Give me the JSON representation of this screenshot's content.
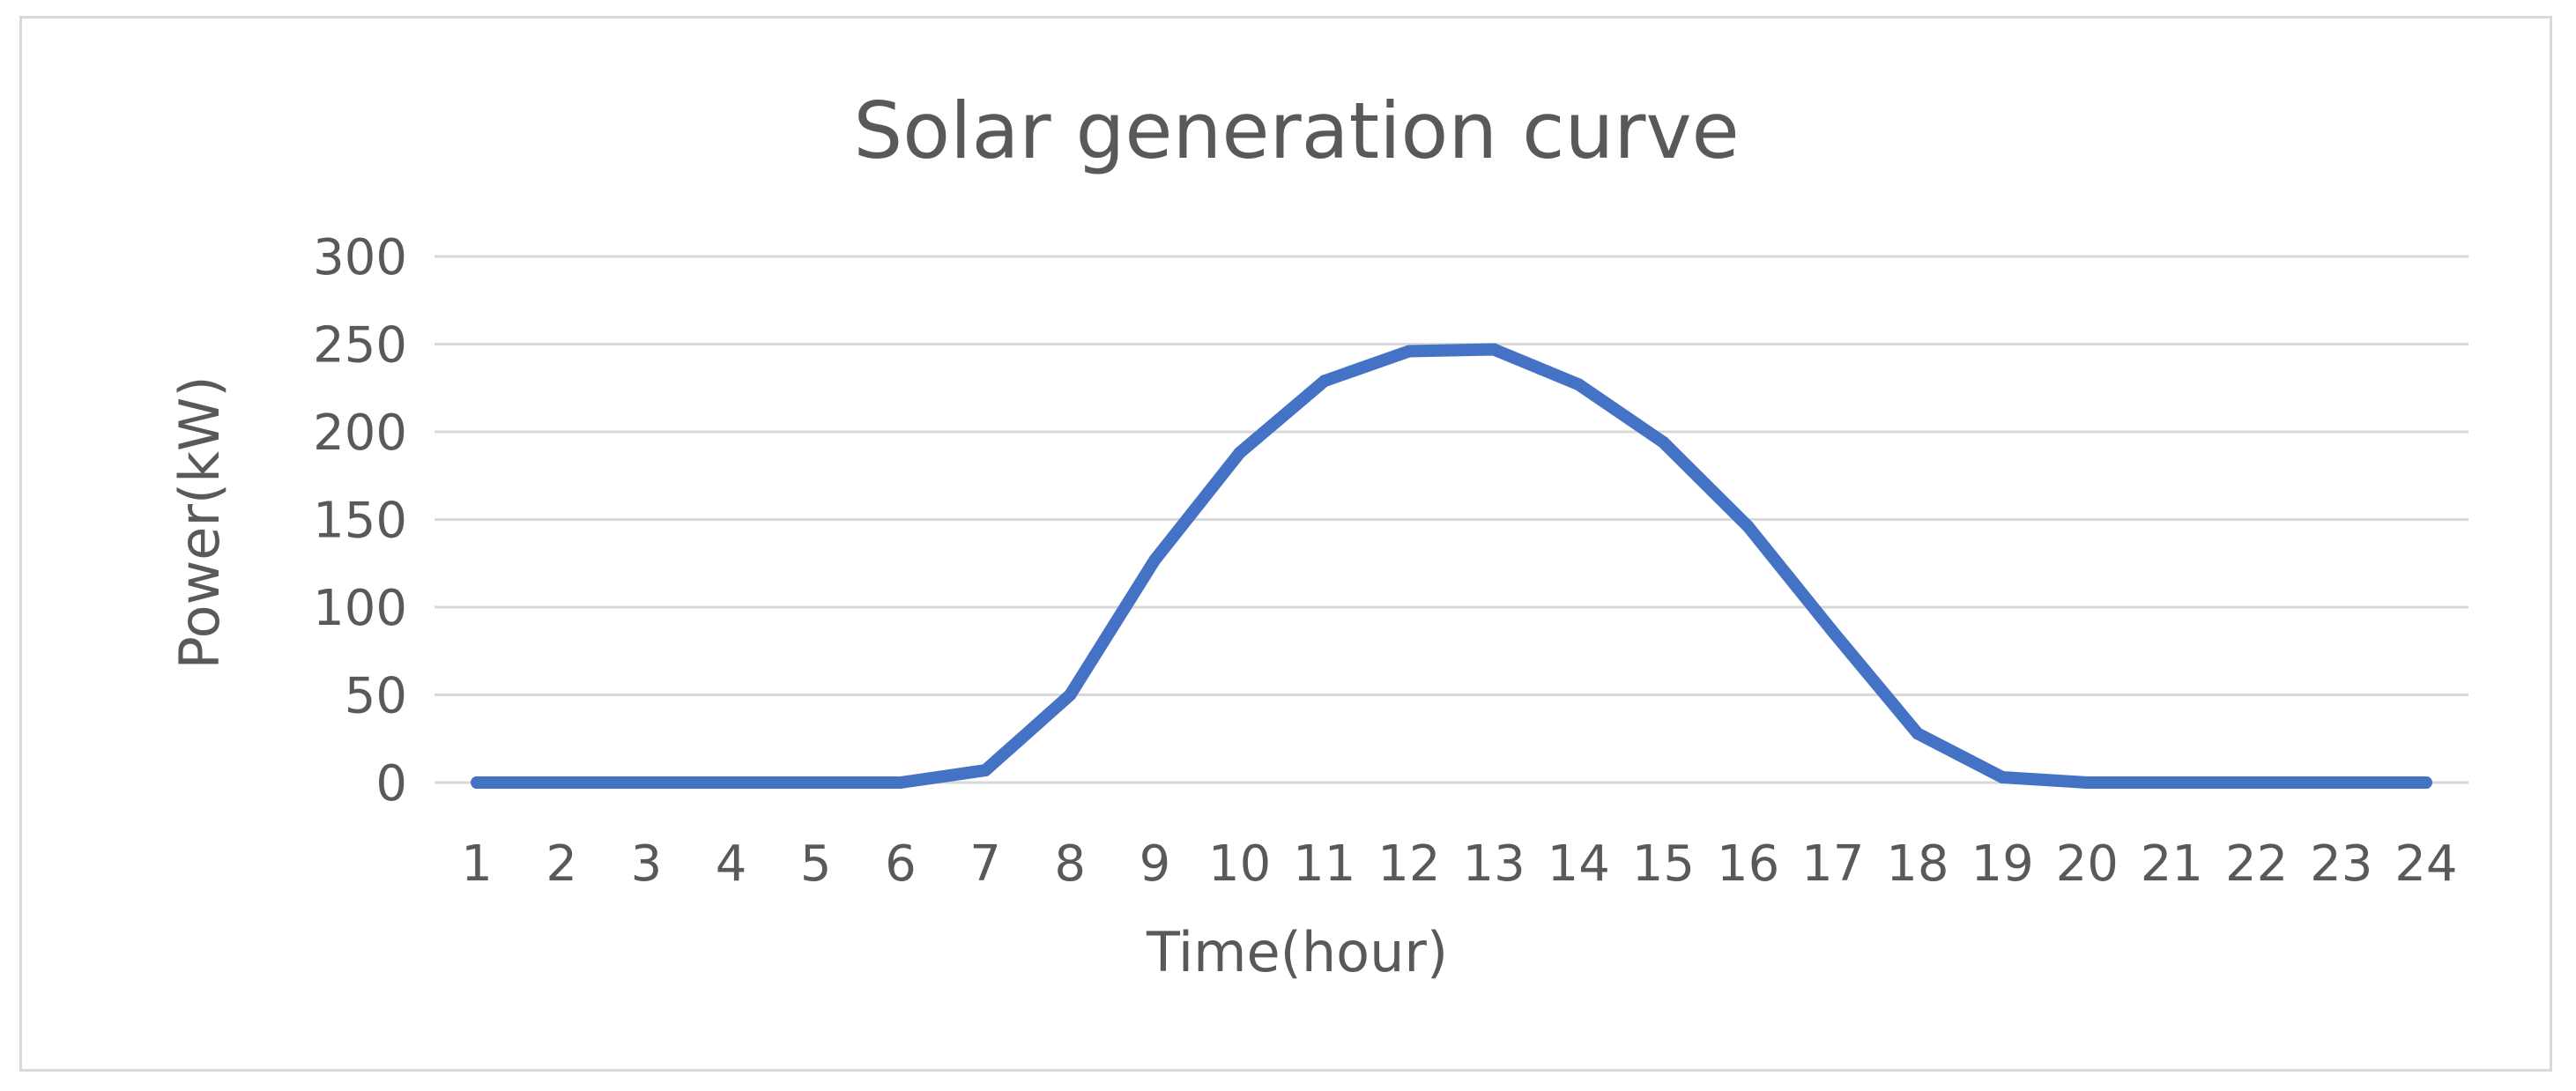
{
  "chart_data": {
    "type": "line",
    "title": "Solar generation curve",
    "xlabel": "Time(hour)",
    "ylabel": "Power(kW)",
    "x": [
      1,
      2,
      3,
      4,
      5,
      6,
      7,
      8,
      9,
      10,
      11,
      12,
      13,
      14,
      15,
      16,
      17,
      18,
      19,
      20,
      21,
      22,
      23,
      24
    ],
    "series": [
      {
        "values": [
          0,
          0,
          0,
          0,
          0,
          0,
          7,
          50,
          127,
          188,
          229,
          246,
          247,
          227,
          194,
          146,
          86,
          28,
          3,
          0,
          0,
          0,
          0,
          0
        ],
        "color": "#4472c4"
      }
    ],
    "ylim": [
      0,
      300
    ],
    "yticks": [
      0,
      50,
      100,
      150,
      200,
      250,
      300
    ],
    "grid": "horizontal",
    "legend": "none"
  }
}
